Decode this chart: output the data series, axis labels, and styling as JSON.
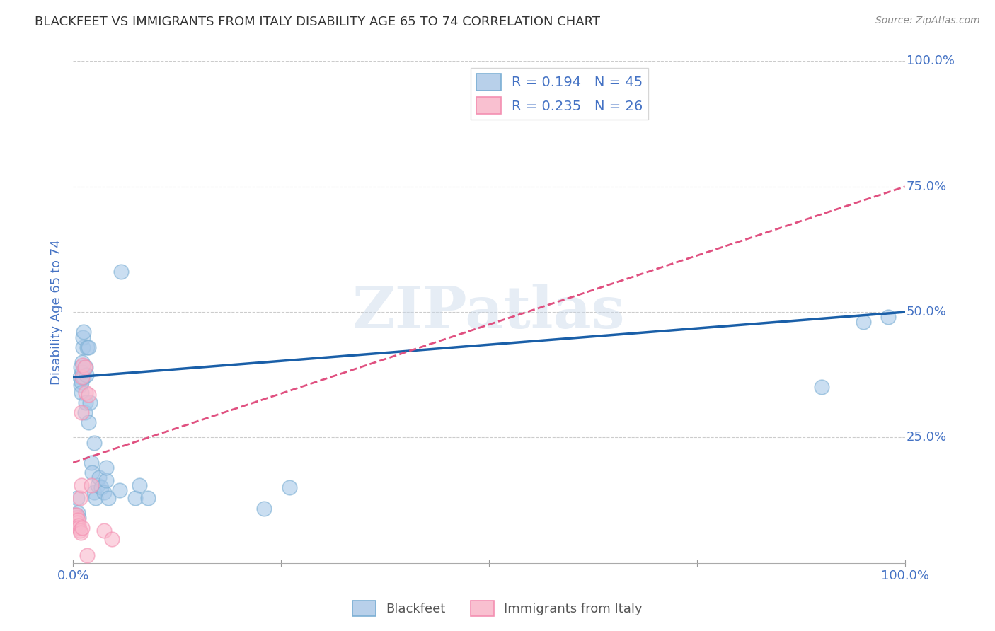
{
  "title": "BLACKFEET VS IMMIGRANTS FROM ITALY DISABILITY AGE 65 TO 74 CORRELATION CHART",
  "source": "Source: ZipAtlas.com",
  "ylabel": "Disability Age 65 to 74",
  "watermark": "ZIPatlas",
  "xlim": [
    0,
    1
  ],
  "ylim": [
    0,
    1
  ],
  "blackfeet_points": [
    [
      0.004,
      0.095
    ],
    [
      0.005,
      0.13
    ],
    [
      0.006,
      0.1
    ],
    [
      0.007,
      0.09
    ],
    [
      0.008,
      0.37
    ],
    [
      0.009,
      0.39
    ],
    [
      0.009,
      0.355
    ],
    [
      0.01,
      0.36
    ],
    [
      0.01,
      0.34
    ],
    [
      0.011,
      0.4
    ],
    [
      0.011,
      0.38
    ],
    [
      0.012,
      0.43
    ],
    [
      0.012,
      0.45
    ],
    [
      0.013,
      0.46
    ],
    [
      0.013,
      0.37
    ],
    [
      0.014,
      0.3
    ],
    [
      0.015,
      0.32
    ],
    [
      0.015,
      0.39
    ],
    [
      0.016,
      0.375
    ],
    [
      0.017,
      0.43
    ],
    [
      0.019,
      0.43
    ],
    [
      0.019,
      0.28
    ],
    [
      0.02,
      0.32
    ],
    [
      0.022,
      0.2
    ],
    [
      0.023,
      0.18
    ],
    [
      0.025,
      0.24
    ],
    [
      0.025,
      0.14
    ],
    [
      0.027,
      0.13
    ],
    [
      0.03,
      0.155
    ],
    [
      0.031,
      0.17
    ],
    [
      0.034,
      0.15
    ],
    [
      0.037,
      0.14
    ],
    [
      0.04,
      0.165
    ],
    [
      0.04,
      0.19
    ],
    [
      0.042,
      0.13
    ],
    [
      0.056,
      0.145
    ],
    [
      0.058,
      0.58
    ],
    [
      0.075,
      0.13
    ],
    [
      0.08,
      0.155
    ],
    [
      0.09,
      0.13
    ],
    [
      0.23,
      0.108
    ],
    [
      0.26,
      0.15
    ],
    [
      0.9,
      0.35
    ],
    [
      0.95,
      0.48
    ],
    [
      0.98,
      0.49
    ]
  ],
  "italy_points": [
    [
      0.001,
      0.085
    ],
    [
      0.002,
      0.095
    ],
    [
      0.002,
      0.085
    ],
    [
      0.003,
      0.08
    ],
    [
      0.003,
      0.075
    ],
    [
      0.004,
      0.09
    ],
    [
      0.004,
      0.095
    ],
    [
      0.005,
      0.08
    ],
    [
      0.006,
      0.085
    ],
    [
      0.007,
      0.075
    ],
    [
      0.007,
      0.07
    ],
    [
      0.008,
      0.065
    ],
    [
      0.008,
      0.13
    ],
    [
      0.009,
      0.06
    ],
    [
      0.01,
      0.155
    ],
    [
      0.01,
      0.3
    ],
    [
      0.011,
      0.07
    ],
    [
      0.011,
      0.37
    ],
    [
      0.012,
      0.395
    ],
    [
      0.014,
      0.39
    ],
    [
      0.015,
      0.34
    ],
    [
      0.017,
      0.015
    ],
    [
      0.019,
      0.335
    ],
    [
      0.022,
      0.155
    ],
    [
      0.037,
      0.065
    ],
    [
      0.047,
      0.048
    ]
  ],
  "blackfeet_color": "#a8c8e8",
  "blackfeet_edge_color": "#7bafd4",
  "italy_color": "#f9b8cc",
  "italy_edge_color": "#f48fb1",
  "blackfeet_line_color": "#1a5fa8",
  "italy_line_color": "#e05080",
  "title_color": "#333333",
  "axis_label_color": "#4472c4",
  "tick_color": "#4472c4",
  "grid_color": "#cccccc",
  "background_color": "#ffffff",
  "legend1_label": "R = 0.194   N = 45",
  "legend2_label": "R = 0.235   N = 26",
  "bottom_legend1": "Blackfeet",
  "bottom_legend2": "Immigrants from Italy"
}
